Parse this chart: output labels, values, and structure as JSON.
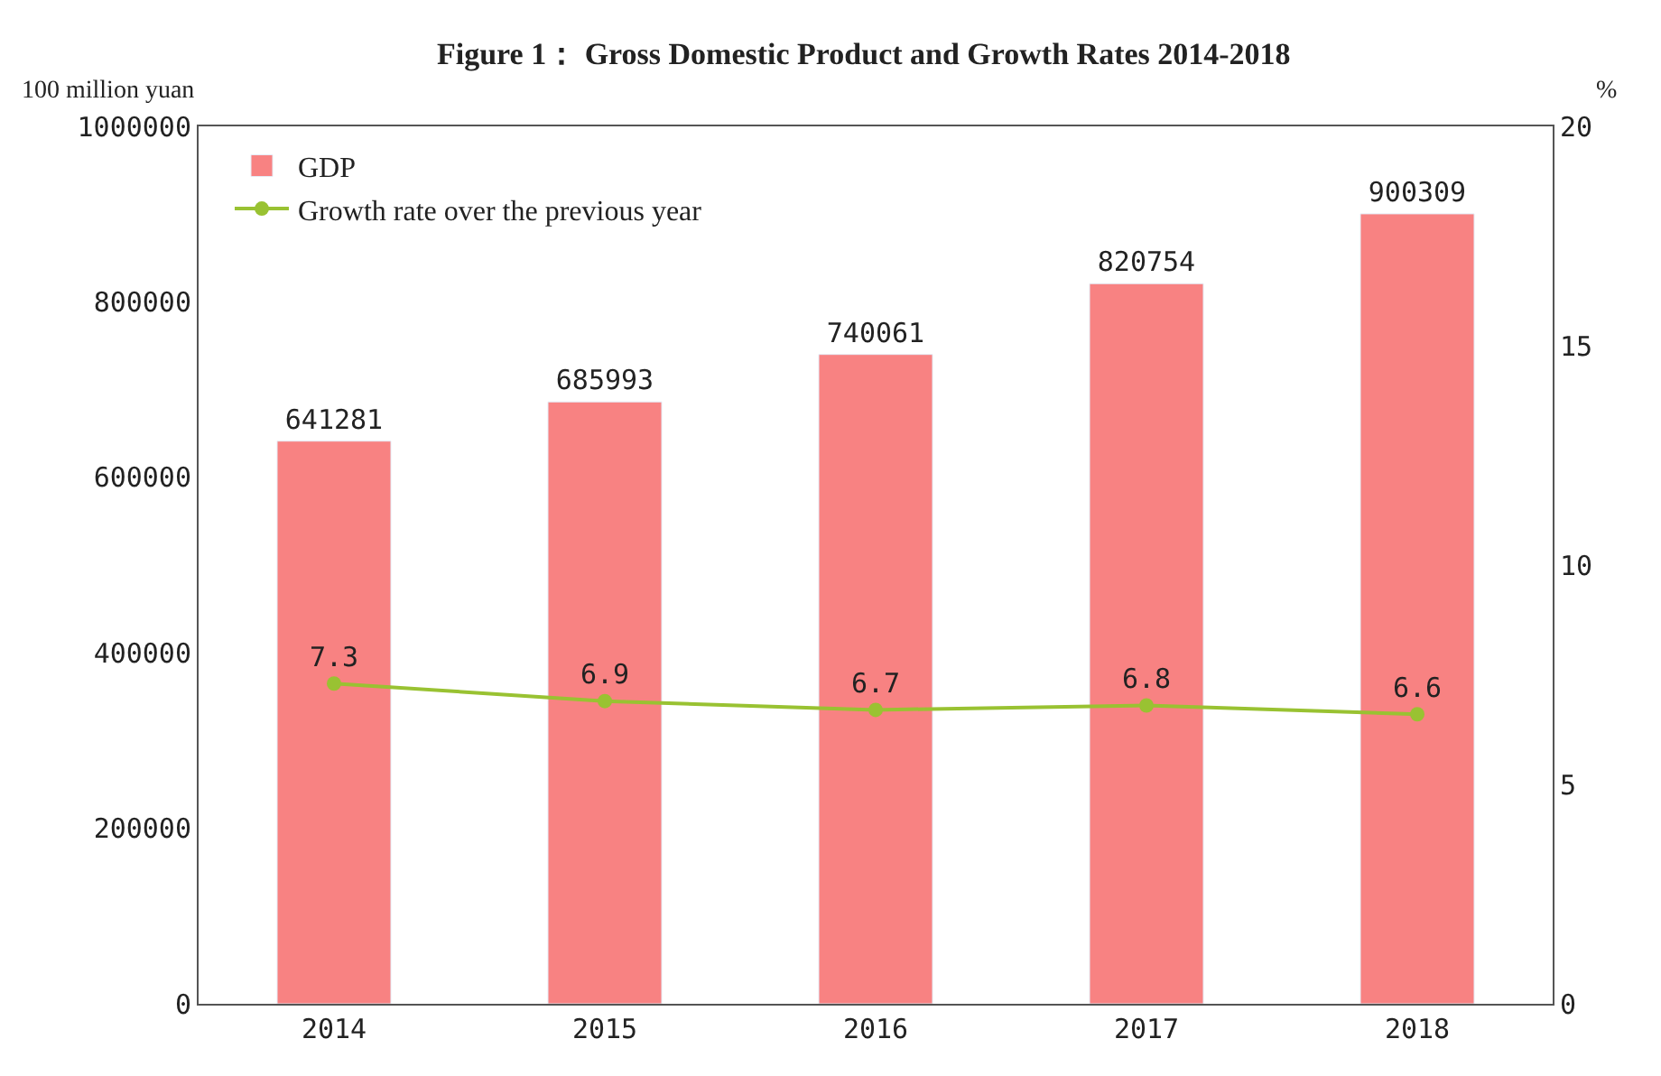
{
  "chart_data": {
    "type": "bar",
    "title": "Figure 1： Gross Domestic Product and Growth Rates 2014-2018",
    "ylabel": "100 million yuan",
    "y2label": "%",
    "categories": [
      "2014",
      "2015",
      "2016",
      "2017",
      "2018"
    ],
    "series": [
      {
        "name": "GDP",
        "color": "#f88282",
        "values": [
          641281,
          685993,
          740061,
          820754,
          900309
        ]
      },
      {
        "name": "Growth rate over the previous year",
        "type": "line",
        "axis": "y2",
        "color": "#99c232",
        "marker": "circle",
        "values": [
          7.3,
          6.9,
          6.7,
          6.8,
          6.6
        ]
      }
    ],
    "ylim": [
      0,
      1000000
    ],
    "yticks": [
      0,
      200000,
      400000,
      600000,
      800000,
      1000000
    ],
    "y2lim": [
      0,
      20
    ],
    "y2ticks": [
      0,
      5,
      10,
      15,
      20
    ],
    "data_labels": true,
    "legend": "top left"
  }
}
